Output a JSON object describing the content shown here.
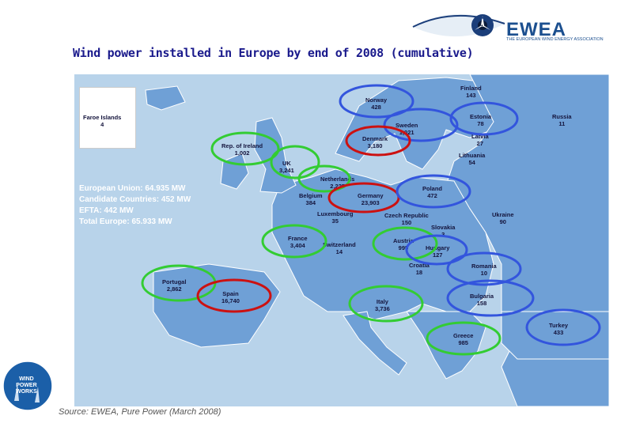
{
  "title": "Wind power installed in Europe by end of 2008 (cumulative)",
  "logo": {
    "name": "EWEA",
    "subtitle": "THE EUROPEAN WIND ENERGY ASSOCIATION"
  },
  "totals": [
    "European Union: 64.935 MW",
    "Candidate Countries: 452 MW",
    "EFTA: 442 MW",
    "Total Europe: 65.933 MW"
  ],
  "source": "Source: EWEA, Pure Power (March 2008)",
  "badge": {
    "line1": "WIND",
    "line2": "POWER",
    "line3": "WORKS"
  },
  "countries": {
    "faroe": {
      "name": "Faroe Islands",
      "value": "4"
    },
    "ireland": {
      "name": "Rep. of Ireland",
      "value": "1,002"
    },
    "uk": {
      "name": "UK",
      "value": "3,241"
    },
    "norway": {
      "name": "Norway",
      "value": "428"
    },
    "sweden": {
      "name": "Sweden",
      "value": "1,021"
    },
    "finland": {
      "name": "Finland",
      "value": "143"
    },
    "denmark": {
      "name": "Denmark",
      "value": "3,180"
    },
    "estonia": {
      "name": "Estonia",
      "value": "78"
    },
    "latvia": {
      "name": "Latvia",
      "value": "27"
    },
    "lithuania": {
      "name": "Lithuania",
      "value": "54"
    },
    "russia": {
      "name": "Russia",
      "value": "11"
    },
    "netherlands": {
      "name": "Netherlands",
      "value": "2,225"
    },
    "belgium": {
      "name": "Belgium",
      "value": "384"
    },
    "germany": {
      "name": "Germany",
      "value": "23,903"
    },
    "poland": {
      "name": "Poland",
      "value": "472"
    },
    "luxembourg": {
      "name": "Luxembourg",
      "value": "35"
    },
    "czech": {
      "name": "Czech Republic",
      "value": "150"
    },
    "slovakia": {
      "name": "Slovakia",
      "value": "3"
    },
    "ukraine": {
      "name": "Ukraine",
      "value": "90"
    },
    "france": {
      "name": "France",
      "value": "3,404"
    },
    "switzerland": {
      "name": "Switzerland",
      "value": "14"
    },
    "austria": {
      "name": "Austria",
      "value": "995"
    },
    "hungary": {
      "name": "Hungary",
      "value": "127"
    },
    "croatia": {
      "name": "Croatia",
      "value": "18"
    },
    "romania": {
      "name": "Romania",
      "value": "10"
    },
    "portugal": {
      "name": "Portugal",
      "value": "2,862"
    },
    "spain": {
      "name": "Spain",
      "value": "16,740"
    },
    "italy": {
      "name": "Italy",
      "value": "3,736"
    },
    "bulgaria": {
      "name": "Bulgaria",
      "value": "158"
    },
    "greece": {
      "name": "Greece",
      "value": "985"
    },
    "turkey": {
      "name": "Turkey",
      "value": "433"
    }
  },
  "colors": {
    "green": "#33cc33",
    "red": "#cc1111",
    "blue": "#3355dd",
    "sea": "#b8d3ea",
    "land": "#6fa0d6"
  }
}
